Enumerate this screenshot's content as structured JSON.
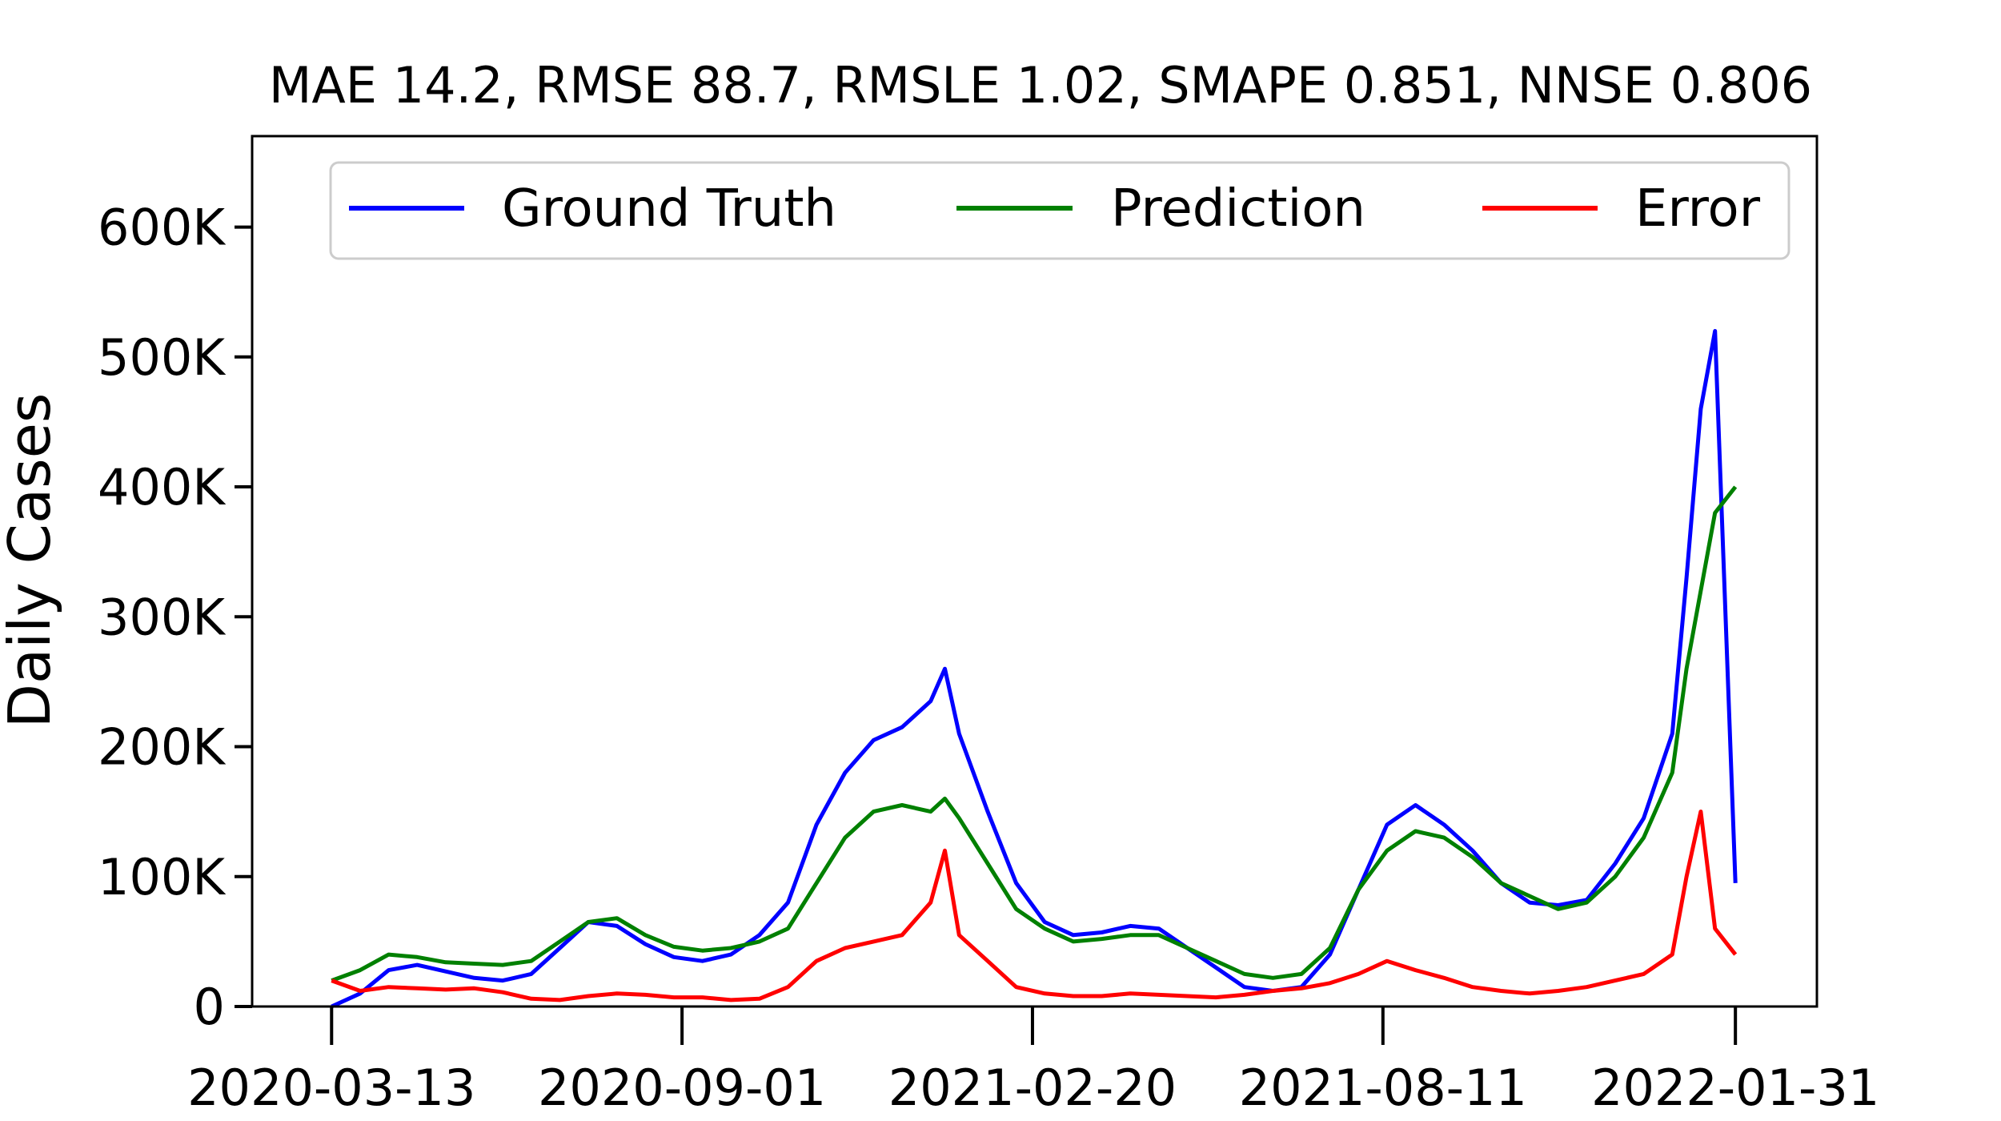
{
  "chart_data": {
    "type": "line",
    "title": "MAE 14.2, RMSE 88.7, RMSLE 1.02, SMAPE 0.851, NNSE 0.806",
    "xlabel": "",
    "ylabel": "Daily Cases",
    "x_start": "2020-03-13",
    "x_end": "2022-01-31",
    "x_ticks": [
      "2020-03-13",
      "2020-09-01",
      "2021-02-20",
      "2021-08-11",
      "2022-01-31"
    ],
    "y_ticks": [
      0,
      100000,
      200000,
      300000,
      400000,
      500000,
      600000
    ],
    "y_tick_labels": [
      "0",
      "100K",
      "200K",
      "300K",
      "400K",
      "500K",
      "600K"
    ],
    "ylim": [
      0,
      670000
    ],
    "xlim": [
      "2020-02-03",
      "2022-03-12"
    ],
    "grid": false,
    "legend_position": "top",
    "colors": {
      "ground_truth": "#0000ff",
      "prediction": "#008000",
      "error": "#ff0000"
    },
    "series": [
      {
        "name": "Ground Truth",
        "color": "#0000ff",
        "x": [
          "2020-03-13",
          "2020-03-27",
          "2020-04-10",
          "2020-04-24",
          "2020-05-08",
          "2020-05-22",
          "2020-06-05",
          "2020-06-19",
          "2020-07-03",
          "2020-07-17",
          "2020-07-31",
          "2020-08-14",
          "2020-08-28",
          "2020-09-11",
          "2020-09-25",
          "2020-10-09",
          "2020-10-23",
          "2020-11-06",
          "2020-11-20",
          "2020-12-04",
          "2020-12-18",
          "2021-01-01",
          "2021-01-08",
          "2021-01-15",
          "2021-01-29",
          "2021-02-12",
          "2021-02-26",
          "2021-03-12",
          "2021-03-26",
          "2021-04-09",
          "2021-04-23",
          "2021-05-07",
          "2021-05-21",
          "2021-06-04",
          "2021-06-18",
          "2021-07-02",
          "2021-07-16",
          "2021-07-30",
          "2021-08-13",
          "2021-08-27",
          "2021-09-10",
          "2021-09-24",
          "2021-10-08",
          "2021-10-22",
          "2021-11-05",
          "2021-11-19",
          "2021-12-03",
          "2021-12-17",
          "2021-12-31",
          "2022-01-07",
          "2022-01-14",
          "2022-01-21",
          "2022-01-31"
        ],
        "values": [
          0,
          10000,
          28000,
          32000,
          27000,
          22000,
          20000,
          25000,
          45000,
          65000,
          62000,
          48000,
          38000,
          35000,
          40000,
          55000,
          80000,
          140000,
          180000,
          205000,
          215000,
          235000,
          260000,
          210000,
          150000,
          95000,
          65000,
          55000,
          57000,
          62000,
          60000,
          45000,
          30000,
          15000,
          12000,
          15000,
          40000,
          90000,
          140000,
          155000,
          140000,
          120000,
          95000,
          80000,
          78000,
          82000,
          110000,
          145000,
          210000,
          330000,
          460000,
          520000,
          95000
        ]
      },
      {
        "name": "Prediction",
        "color": "#008000",
        "x": [
          "2020-03-13",
          "2020-03-27",
          "2020-04-10",
          "2020-04-24",
          "2020-05-08",
          "2020-05-22",
          "2020-06-05",
          "2020-06-19",
          "2020-07-03",
          "2020-07-17",
          "2020-07-31",
          "2020-08-14",
          "2020-08-28",
          "2020-09-11",
          "2020-09-25",
          "2020-10-09",
          "2020-10-23",
          "2020-11-06",
          "2020-11-20",
          "2020-12-04",
          "2020-12-18",
          "2021-01-01",
          "2021-01-08",
          "2021-01-15",
          "2021-01-29",
          "2021-02-12",
          "2021-02-26",
          "2021-03-12",
          "2021-03-26",
          "2021-04-09",
          "2021-04-23",
          "2021-05-07",
          "2021-05-21",
          "2021-06-04",
          "2021-06-18",
          "2021-07-02",
          "2021-07-16",
          "2021-07-30",
          "2021-08-13",
          "2021-08-27",
          "2021-09-10",
          "2021-09-24",
          "2021-10-08",
          "2021-10-22",
          "2021-11-05",
          "2021-11-19",
          "2021-12-03",
          "2021-12-17",
          "2021-12-31",
          "2022-01-07",
          "2022-01-14",
          "2022-01-21",
          "2022-01-31"
        ],
        "values": [
          20000,
          28000,
          40000,
          38000,
          34000,
          33000,
          32000,
          35000,
          50000,
          65000,
          68000,
          55000,
          46000,
          43000,
          45000,
          50000,
          60000,
          95000,
          130000,
          150000,
          155000,
          150000,
          160000,
          145000,
          110000,
          75000,
          60000,
          50000,
          52000,
          55000,
          55000,
          45000,
          35000,
          25000,
          22000,
          25000,
          45000,
          90000,
          120000,
          135000,
          130000,
          115000,
          95000,
          85000,
          75000,
          80000,
          100000,
          130000,
          180000,
          260000,
          320000,
          380000,
          400000
        ]
      },
      {
        "name": "Error",
        "color": "#ff0000",
        "x": [
          "2020-03-13",
          "2020-03-27",
          "2020-04-10",
          "2020-04-24",
          "2020-05-08",
          "2020-05-22",
          "2020-06-05",
          "2020-06-19",
          "2020-07-03",
          "2020-07-17",
          "2020-07-31",
          "2020-08-14",
          "2020-08-28",
          "2020-09-11",
          "2020-09-25",
          "2020-10-09",
          "2020-10-23",
          "2020-11-06",
          "2020-11-20",
          "2020-12-04",
          "2020-12-18",
          "2021-01-01",
          "2021-01-08",
          "2021-01-15",
          "2021-01-29",
          "2021-02-12",
          "2021-02-26",
          "2021-03-12",
          "2021-03-26",
          "2021-04-09",
          "2021-04-23",
          "2021-05-07",
          "2021-05-21",
          "2021-06-04",
          "2021-06-18",
          "2021-07-02",
          "2021-07-16",
          "2021-07-30",
          "2021-08-13",
          "2021-08-27",
          "2021-09-10",
          "2021-09-24",
          "2021-10-08",
          "2021-10-22",
          "2021-11-05",
          "2021-11-19",
          "2021-12-03",
          "2021-12-17",
          "2021-12-31",
          "2022-01-07",
          "2022-01-14",
          "2022-01-21",
          "2022-01-31"
        ],
        "values": [
          20000,
          12000,
          15000,
          14000,
          13000,
          14000,
          11000,
          6000,
          5000,
          8000,
          10000,
          9000,
          7000,
          7000,
          5000,
          6000,
          15000,
          35000,
          45000,
          50000,
          55000,
          80000,
          120000,
          55000,
          35000,
          15000,
          10000,
          8000,
          8000,
          10000,
          9000,
          8000,
          7000,
          9000,
          12000,
          14000,
          18000,
          25000,
          35000,
          28000,
          22000,
          15000,
          12000,
          10000,
          12000,
          15000,
          20000,
          25000,
          40000,
          100000,
          150000,
          60000,
          40000
        ]
      }
    ]
  }
}
